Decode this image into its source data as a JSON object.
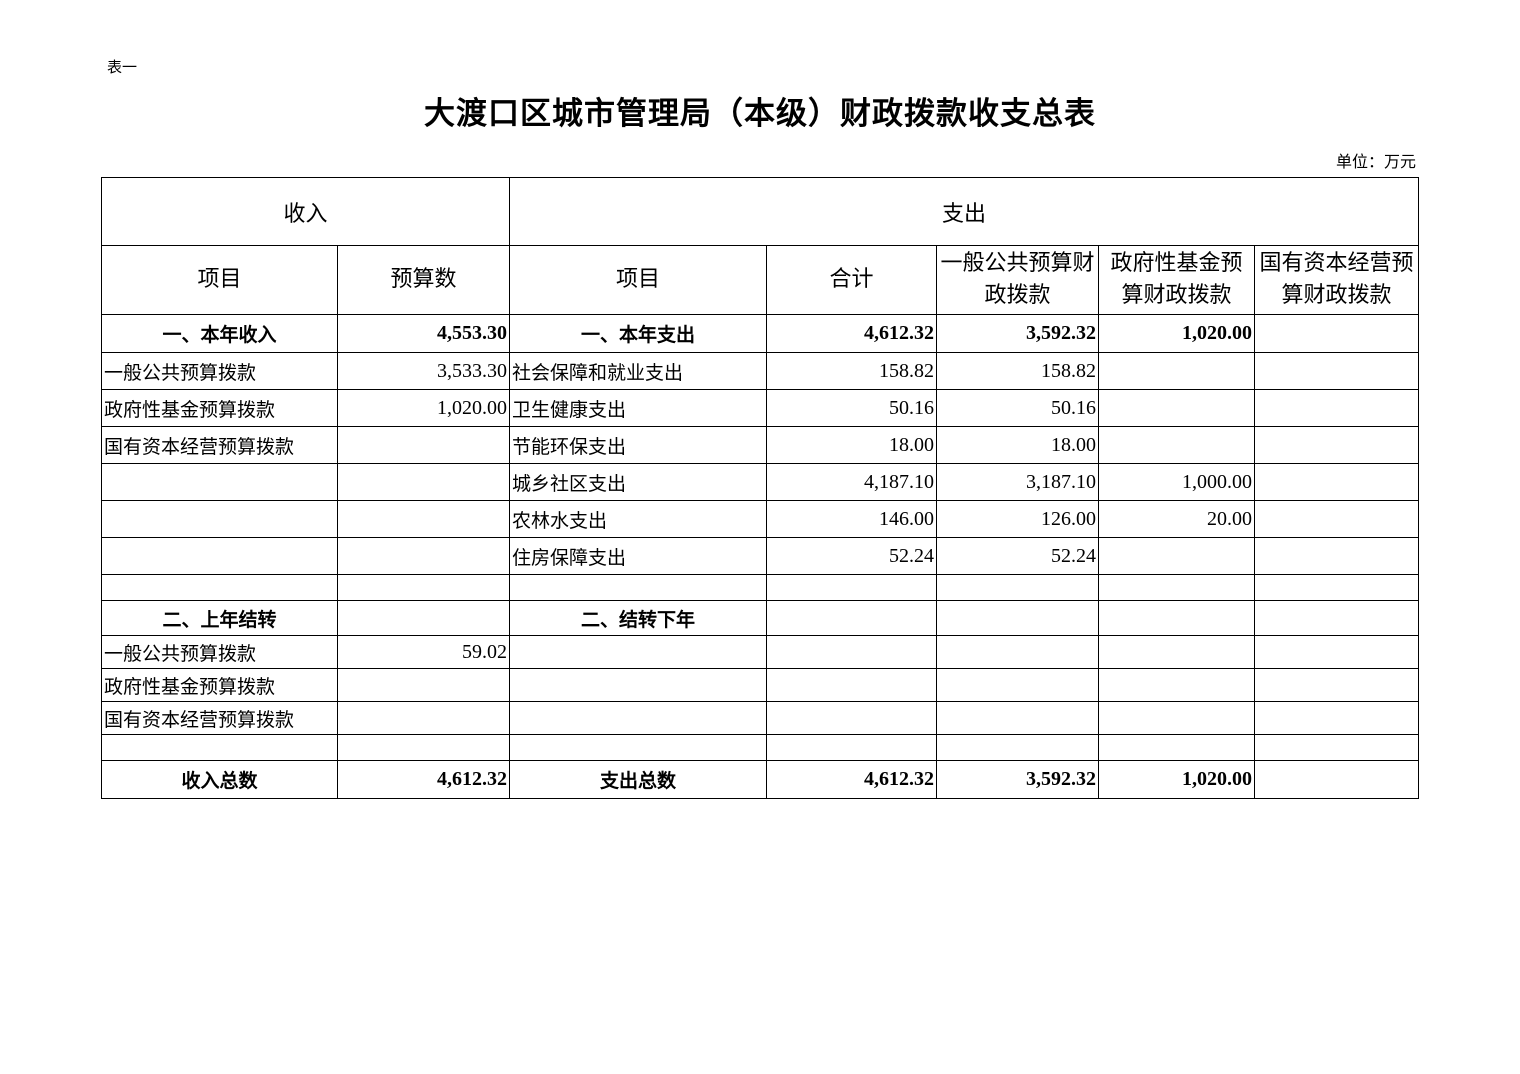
{
  "doc_label": "表一",
  "title": "大渡口区城市管理局（本级）财政拨款收支总表",
  "unit": "单位：万元",
  "header": {
    "income": "收入",
    "expense": "支出",
    "columns": [
      "项目",
      "预算数",
      "项目",
      "合计",
      "一般公共预算财政拨款",
      "政府性基金预算财政拨款",
      "国有资本经营预算财政拨款"
    ]
  },
  "rows": [
    {
      "bold": true,
      "cells": [
        "一、本年收入",
        "4,553.30",
        "一、本年支出",
        "4,612.32",
        "3,592.32",
        "1,020.00",
        ""
      ]
    },
    {
      "bold": false,
      "cells": [
        "一般公共预算拨款",
        "3,533.30",
        "社会保障和就业支出",
        "158.82",
        "158.82",
        "",
        ""
      ]
    },
    {
      "bold": false,
      "cells": [
        "政府性基金预算拨款",
        "1,020.00",
        "卫生健康支出",
        "50.16",
        "50.16",
        "",
        ""
      ]
    },
    {
      "bold": false,
      "cells": [
        "国有资本经营预算拨款",
        "",
        "节能环保支出",
        "18.00",
        "18.00",
        "",
        ""
      ]
    },
    {
      "bold": false,
      "cells": [
        "",
        "",
        "城乡社区支出",
        "4,187.10",
        "3,187.10",
        "1,000.00",
        ""
      ]
    },
    {
      "bold": false,
      "cells": [
        "",
        "",
        "农林水支出",
        "146.00",
        "126.00",
        "20.00",
        ""
      ]
    },
    {
      "bold": false,
      "cells": [
        "",
        "",
        "住房保障支出",
        "52.24",
        "52.24",
        "",
        ""
      ]
    },
    {
      "bold": false,
      "cells": [
        "",
        "",
        "",
        "",
        "",
        "",
        ""
      ]
    },
    {
      "bold": true,
      "cells": [
        "二、上年结转",
        "",
        "二、结转下年",
        "",
        "",
        "",
        ""
      ]
    },
    {
      "bold": false,
      "cells": [
        "一般公共预算拨款",
        "59.02",
        "",
        "",
        "",
        "",
        ""
      ]
    },
    {
      "bold": false,
      "cells": [
        "政府性基金预算拨款",
        "",
        "",
        "",
        "",
        "",
        ""
      ]
    },
    {
      "bold": false,
      "cells": [
        "国有资本经营预算拨款",
        "",
        "",
        "",
        "",
        "",
        ""
      ]
    },
    {
      "bold": false,
      "cells": [
        "",
        "",
        "",
        "",
        "",
        "",
        ""
      ]
    },
    {
      "bold": true,
      "cells": [
        "收入总数",
        "4,612.32",
        "支出总数",
        "4,612.32",
        "3,592.32",
        "1,020.00",
        ""
      ]
    }
  ]
}
